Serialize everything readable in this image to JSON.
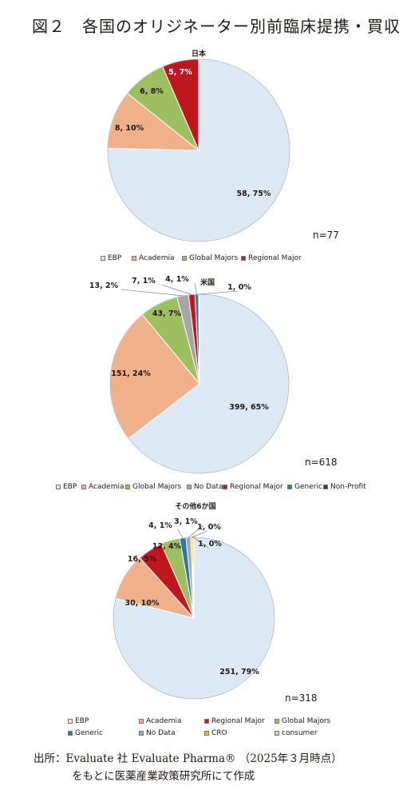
{
  "title": "図２　各国のオリジネーター別前臨床提携・買収",
  "colors": {
    "EBP": "#dde8f5",
    "Academia": "#f0b08a",
    "Global Majors": "#9dbf5f",
    "Regional Major": "#c0161f",
    "No Data": "#a6a6a6",
    "Generic": "#2b78a0",
    "Non-Profit": "#1f3a6b",
    "CRO": "#f2b80c",
    "consumer": "#f5c6b0"
  },
  "chart_data": [
    {
      "type": "pie",
      "title": "日本",
      "n_label": "n=77",
      "slices": [
        {
          "name": "EBP",
          "value": 58,
          "label": "58, 75%"
        },
        {
          "name": "Academia",
          "value": 8,
          "label": "8, 10%"
        },
        {
          "name": "Global Majors",
          "value": 6,
          "label": "6, 8%"
        },
        {
          "name": "Regional Major",
          "value": 5,
          "label": "5, 7%"
        }
      ],
      "legend": [
        "EBP",
        "Academia",
        "Global Majors",
        "Regional Major"
      ]
    },
    {
      "type": "pie",
      "title": "米国",
      "n_label": "n=618",
      "slices": [
        {
          "name": "EBP",
          "value": 399,
          "label": "399, 65%"
        },
        {
          "name": "Academia",
          "value": 151,
          "label": "151, 24%"
        },
        {
          "name": "Global Majors",
          "value": 43,
          "label": "43, 7%"
        },
        {
          "name": "No Data",
          "value": 13,
          "label": "13, 2%"
        },
        {
          "name": "Regional Major",
          "value": 7,
          "label": "7, 1%"
        },
        {
          "name": "Generic",
          "value": 4,
          "label": "4, 1%"
        },
        {
          "name": "Non-Profit",
          "value": 1,
          "label": "1, 0%"
        }
      ],
      "legend": [
        "EBP",
        "Academia",
        "Global Majors",
        "No Data",
        "Regional Major",
        "Generic",
        "Non-Profit"
      ]
    },
    {
      "type": "pie",
      "title": "その他6か国",
      "n_label": "n=318",
      "slices": [
        {
          "name": "EBP",
          "value": 251,
          "label": "251, 79%"
        },
        {
          "name": "Academia",
          "value": 30,
          "label": "30, 10%"
        },
        {
          "name": "Regional Major",
          "value": 16,
          "label": "16, 5%"
        },
        {
          "name": "Global Majors",
          "value": 12,
          "label": "12, 4%"
        },
        {
          "name": "Generic",
          "value": 4,
          "label": "4, 1%"
        },
        {
          "name": "No Data",
          "value": 3,
          "label": "3, 1%"
        },
        {
          "name": "CRO",
          "value": 1,
          "label": "1, 0%"
        },
        {
          "name": "consumer",
          "value": 1,
          "label": "1, 0%"
        }
      ],
      "legend": [
        "EBP",
        "Academia",
        "Regional Major",
        "Global Majors",
        "Generic",
        "No Data",
        "CRO",
        "consumer"
      ]
    }
  ],
  "source": {
    "line1": "出所：Evaluate 社 Evaluate Pharma® （2025年３月時点）",
    "line2": "をもとに医薬産業政策研究所にて作成"
  }
}
